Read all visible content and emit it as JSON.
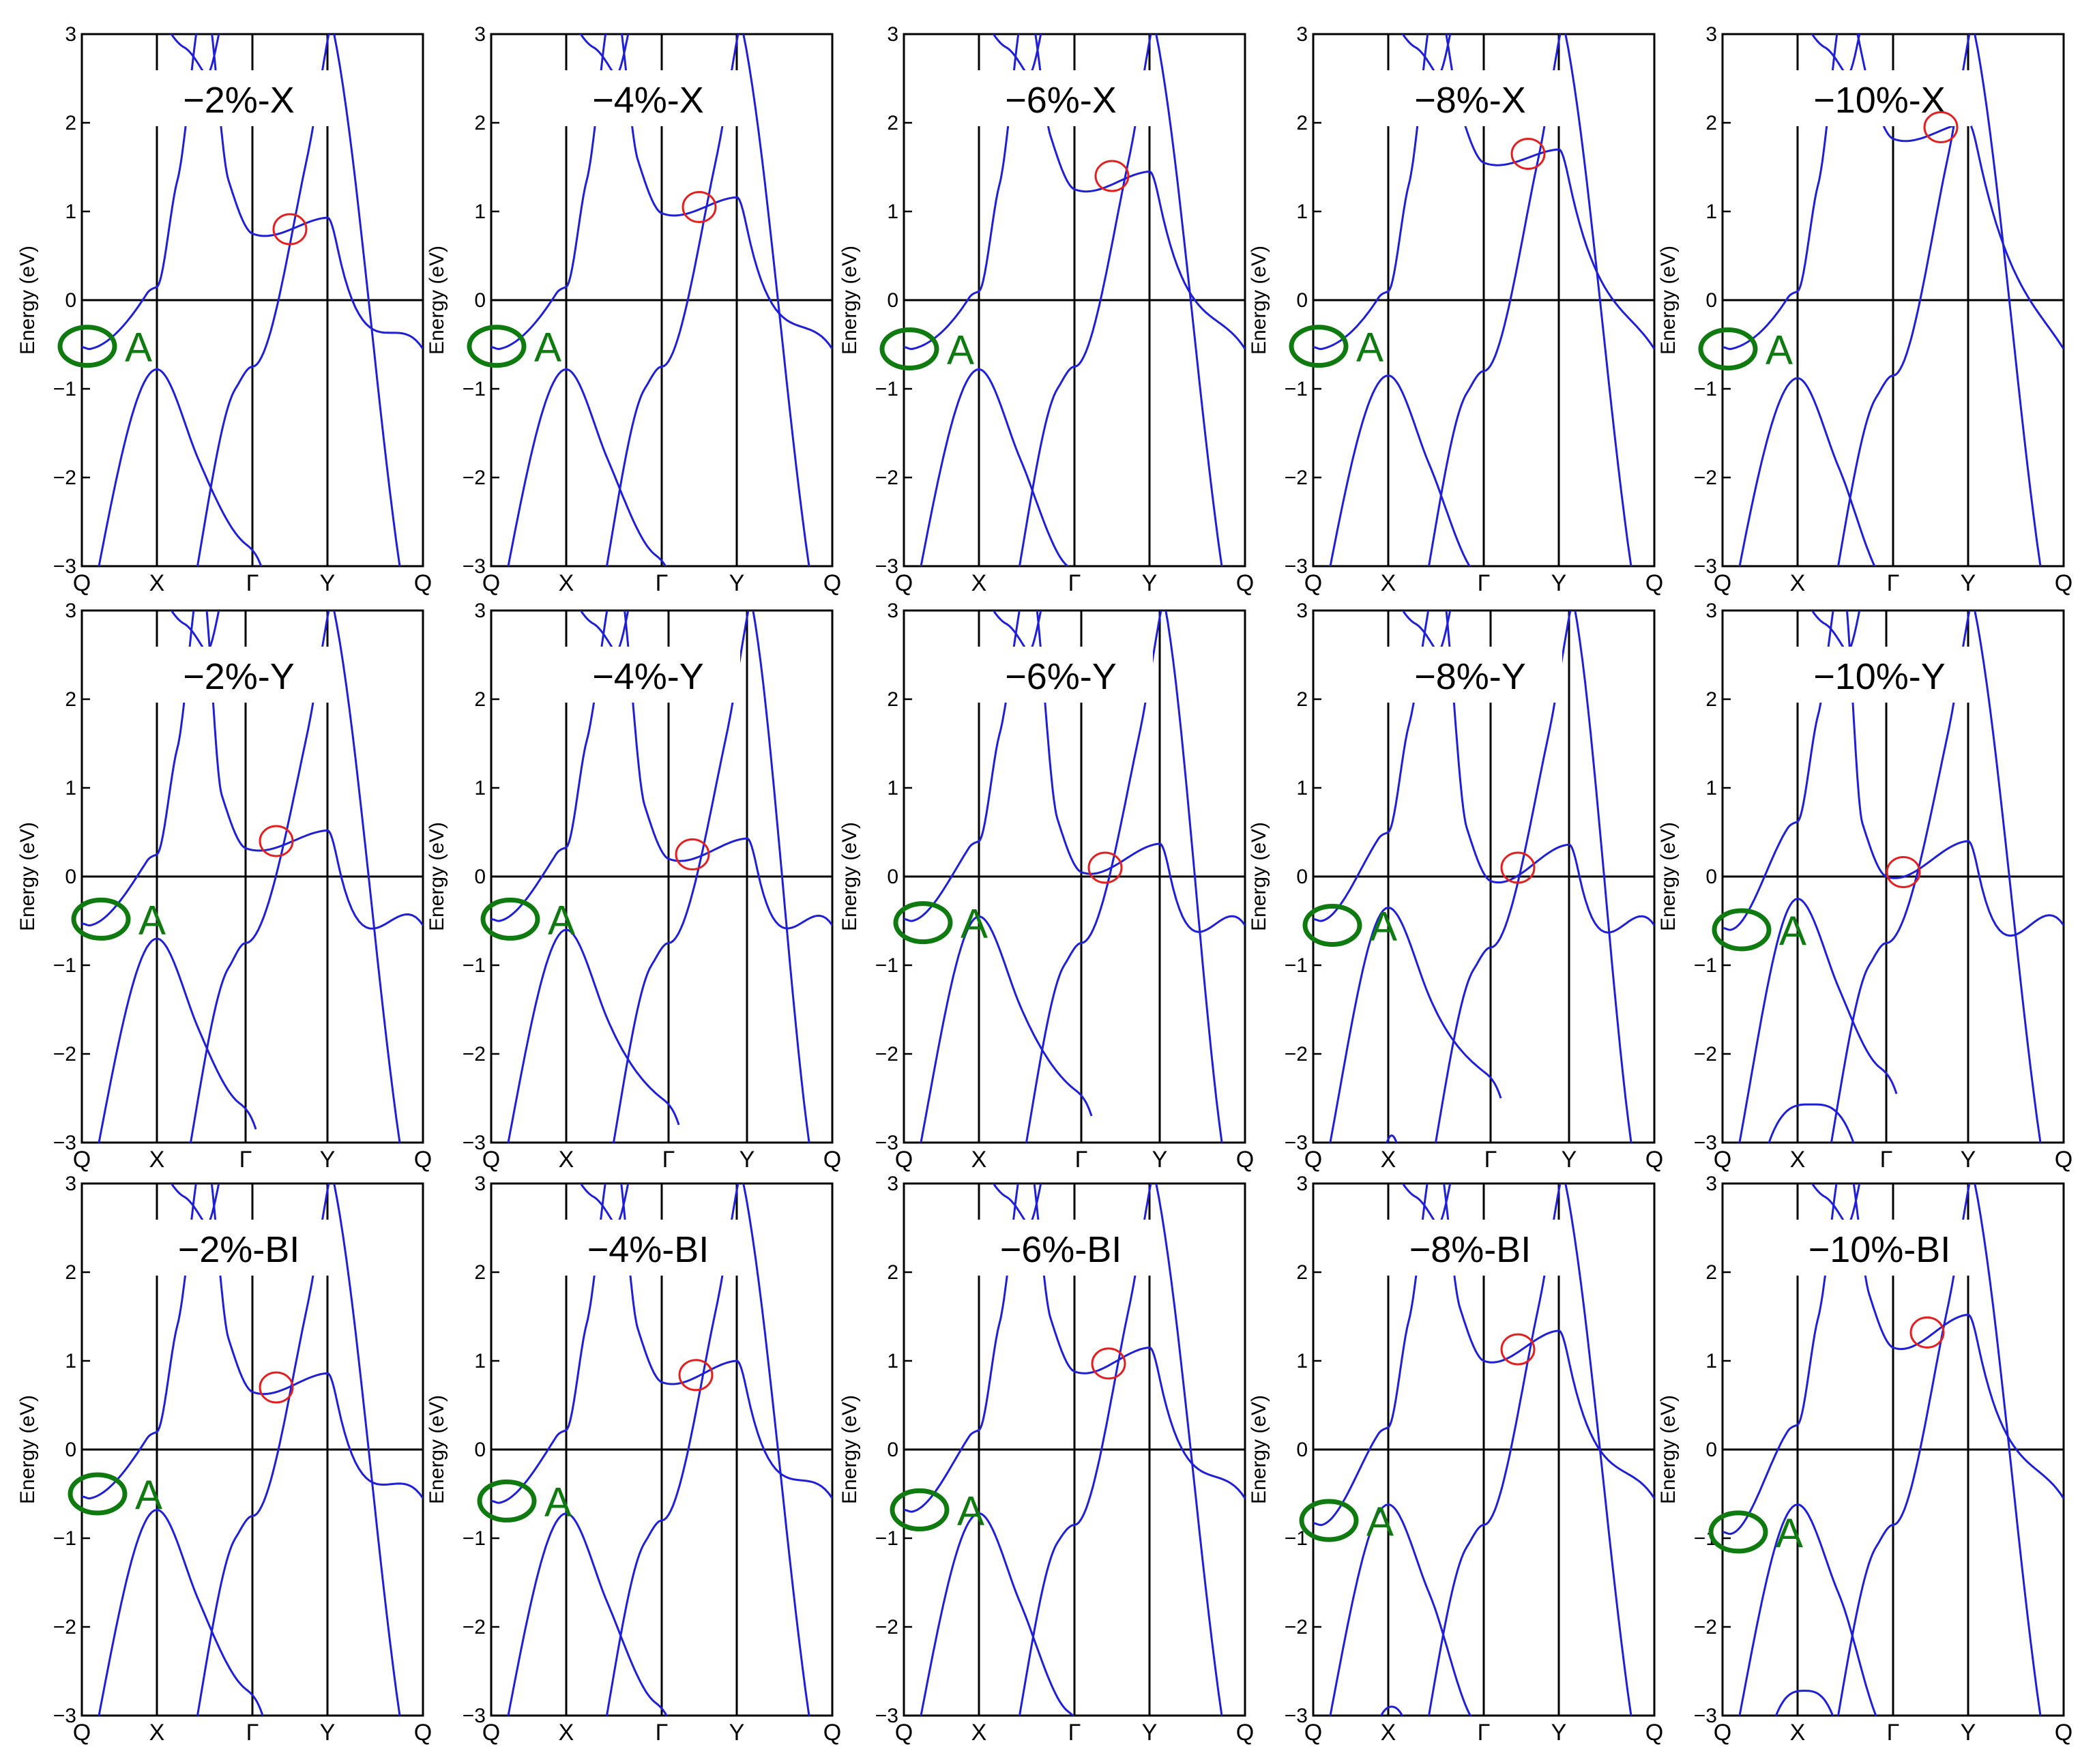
{
  "figure": {
    "rows": 3,
    "cols": 5,
    "colors": {
      "band": "#1f1fd6",
      "axis": "#000000",
      "red_marker": "#e32020",
      "green_marker": "#0f7a10",
      "label_box": "#ffffff"
    }
  },
  "chart_data": [
    {
      "id": "p-2X",
      "type": "line",
      "title": "−2%-X",
      "ylabel": "Energy (eV)",
      "ylim": [
        -3,
        3
      ],
      "yticks": [
        -3,
        -2,
        -1,
        0,
        1,
        2,
        3
      ],
      "kpoints": [
        "Q",
        "X",
        "Γ",
        "Y",
        "Q"
      ],
      "kpos": [
        0,
        0.22,
        0.5,
        0.72,
        1.0
      ],
      "params": {
        "x1": 0.15,
        "d1": 0.75,
        "g1": -0.75,
        "y1": 0.93,
        "vx": -0.78,
        "vg": -0.75,
        "low": -2.75,
        "dip": -0.55
      },
      "red_marker": {
        "x": 0.61,
        "y": 0.8
      },
      "green_marker": {
        "label": "A",
        "x": 0.0,
        "y": -0.52
      }
    },
    {
      "id": "p-4X",
      "type": "line",
      "title": "−4%-X",
      "ylabel": "Energy (eV)",
      "ylim": [
        -3,
        3
      ],
      "yticks": [
        -3,
        -2,
        -1,
        0,
        1,
        2,
        3
      ],
      "kpoints": [
        "Q",
        "X",
        "Γ",
        "Y",
        "Q"
      ],
      "kpos": [
        0,
        0.22,
        0.5,
        0.72,
        1.0
      ],
      "params": {
        "x1": 0.15,
        "d1": 0.98,
        "g1": -0.75,
        "y1": 1.16,
        "vx": -0.78,
        "vg": -0.75,
        "low": -2.87,
        "dip": -0.55
      },
      "red_marker": {
        "x": 0.61,
        "y": 1.05
      },
      "green_marker": {
        "label": "A",
        "x": 0.0,
        "y": -0.52
      }
    },
    {
      "id": "p-6X",
      "type": "line",
      "title": "−6%-X",
      "ylabel": "Energy (eV)",
      "ylim": [
        -3,
        3
      ],
      "yticks": [
        -3,
        -2,
        -1,
        0,
        1,
        2,
        3
      ],
      "kpoints": [
        "Q",
        "X",
        "Γ",
        "Y",
        "Q"
      ],
      "kpos": [
        0,
        0.22,
        0.5,
        0.72,
        1.0
      ],
      "params": {
        "x1": 0.1,
        "d1": 1.25,
        "g1": -0.75,
        "y1": 1.45,
        "vx": -0.78,
        "vg": -0.75,
        "low": -3.0,
        "dip": -0.55
      },
      "red_marker": {
        "x": 0.61,
        "y": 1.4
      },
      "green_marker": {
        "label": "A",
        "x": 0.0,
        "y": -0.55
      }
    },
    {
      "id": "p-8X",
      "type": "line",
      "title": "−8%-X",
      "ylabel": "Energy (eV)",
      "ylim": [
        -3,
        3
      ],
      "yticks": [
        -3,
        -2,
        -1,
        0,
        1,
        2,
        3
      ],
      "kpoints": [
        "Q",
        "X",
        "Γ",
        "Y",
        "Q"
      ],
      "kpos": [
        0,
        0.22,
        0.5,
        0.72,
        1.0
      ],
      "params": {
        "x1": 0.1,
        "d1": 1.55,
        "g1": -0.8,
        "y1": 1.7,
        "vx": -0.85,
        "vg": -0.8,
        "low": -3.1,
        "dip": -0.55
      },
      "red_marker": {
        "x": 0.63,
        "y": 1.65
      },
      "green_marker": {
        "label": "A",
        "x": 0.0,
        "y": -0.52
      }
    },
    {
      "id": "p-10X",
      "type": "line",
      "title": "−10%-X",
      "ylabel": "Energy (eV)",
      "ylim": [
        -3,
        3
      ],
      "yticks": [
        -3,
        -2,
        -1,
        0,
        1,
        2,
        3
      ],
      "kpoints": [
        "Q",
        "X",
        "Γ",
        "Y",
        "Q"
      ],
      "kpos": [
        0,
        0.22,
        0.5,
        0.72,
        1.0
      ],
      "params": {
        "x1": 0.1,
        "d1": 1.82,
        "g1": -0.85,
        "y1": 2.0,
        "vx": -0.88,
        "vg": -0.85,
        "low": -3.2,
        "dip": -0.55
      },
      "red_marker": {
        "x": 0.64,
        "y": 1.95
      },
      "green_marker": {
        "label": "A",
        "x": 0.0,
        "y": -0.55
      }
    },
    {
      "id": "p-2Y",
      "type": "line",
      "title": "−2%-Y",
      "ylabel": "Energy (eV)",
      "ylim": [
        -3,
        3
      ],
      "yticks": [
        -3,
        -2,
        -1,
        0,
        1,
        2,
        3
      ],
      "kpoints": [
        "Q",
        "X",
        "Γ",
        "Y",
        "Q"
      ],
      "kpos": [
        0,
        0.22,
        0.48,
        0.72,
        1.0
      ],
      "params": {
        "x1": 0.25,
        "d1": 0.32,
        "g1": -0.75,
        "y1": 0.52,
        "vx": -0.7,
        "vg": -0.78,
        "low": -2.55,
        "dip": -0.55
      },
      "red_marker": {
        "x": 0.57,
        "y": 0.4
      },
      "green_marker": {
        "label": "A",
        "x": 0.04,
        "y": -0.48
      }
    },
    {
      "id": "p-4Y",
      "type": "line",
      "title": "−4%-Y",
      "ylabel": "Energy (eV)",
      "ylim": [
        -3,
        3
      ],
      "yticks": [
        -3,
        -2,
        -1,
        0,
        1,
        2,
        3
      ],
      "kpoints": [
        "Q",
        "X",
        "Γ",
        "Y",
        "Q"
      ],
      "kpos": [
        0,
        0.22,
        0.52,
        0.75,
        1.0
      ],
      "params": {
        "x1": 0.33,
        "d1": 0.2,
        "g1": -0.75,
        "y1": 0.43,
        "vx": -0.6,
        "vg": -0.75,
        "low": -2.5,
        "dip": -0.5
      },
      "red_marker": {
        "x": 0.59,
        "y": 0.25
      },
      "green_marker": {
        "label": "A",
        "x": 0.04,
        "y": -0.48
      }
    },
    {
      "id": "p-6Y",
      "type": "line",
      "title": "−6%-Y",
      "ylabel": "Energy (eV)",
      "ylim": [
        -3,
        3
      ],
      "yticks": [
        -3,
        -2,
        -1,
        0,
        1,
        2,
        3
      ],
      "kpoints": [
        "Q",
        "X",
        "Γ",
        "Y",
        "Q"
      ],
      "kpos": [
        0,
        0.22,
        0.52,
        0.75,
        1.0
      ],
      "params": {
        "x1": 0.4,
        "d1": 0.05,
        "g1": -0.75,
        "y1": 0.37,
        "vx": -0.45,
        "vg": -0.75,
        "low": -2.4,
        "dip": -0.5
      },
      "red_marker": {
        "x": 0.59,
        "y": 0.1
      },
      "green_marker": {
        "label": "A",
        "x": 0.04,
        "y": -0.52
      }
    },
    {
      "id": "p-8Y",
      "type": "line",
      "title": "−8%-Y",
      "ylabel": "Energy (eV)",
      "ylim": [
        -3,
        3
      ],
      "yticks": [
        -3,
        -2,
        -1,
        0,
        1,
        2,
        3
      ],
      "kpoints": [
        "Q",
        "X",
        "Γ",
        "Y",
        "Q"
      ],
      "kpos": [
        0,
        0.22,
        0.52,
        0.75,
        1.0
      ],
      "params": {
        "x1": 0.5,
        "d1": -0.05,
        "g1": -0.8,
        "y1": 0.36,
        "vx": -0.35,
        "vg": -0.8,
        "low": -2.2,
        "dip": -0.5
      },
      "red_marker": {
        "x": 0.6,
        "y": 0.1
      },
      "green_marker": {
        "label": "A",
        "x": 0.04,
        "y": -0.55
      },
      "extra_bump": {
        "peak": -2.92,
        "from": 0.2,
        "to": 0.26
      }
    },
    {
      "id": "p-10Y",
      "type": "line",
      "title": "−10%-Y",
      "ylabel": "Energy (eV)",
      "ylim": [
        -3,
        3
      ],
      "yticks": [
        -3,
        -2,
        -1,
        0,
        1,
        2,
        3
      ],
      "kpoints": [
        "Q",
        "X",
        "Γ",
        "Y",
        "Q"
      ],
      "kpos": [
        0,
        0.22,
        0.48,
        0.72,
        1.0
      ],
      "params": {
        "x1": 0.62,
        "d1": 0.0,
        "g1": -0.75,
        "y1": 0.4,
        "vx": -0.25,
        "vg": -0.75,
        "low": -2.15,
        "dip": -0.6
      },
      "red_marker": {
        "x": 0.53,
        "y": 0.05
      },
      "green_marker": {
        "label": "A",
        "x": 0.04,
        "y": -0.6
      },
      "extra_bump": {
        "peak": -2.57,
        "from": 0.12,
        "to": 0.4
      }
    },
    {
      "id": "p-2BI",
      "type": "line",
      "title": "−2%-BI",
      "ylabel": "Energy (eV)",
      "ylim": [
        -3,
        3
      ],
      "yticks": [
        -3,
        -2,
        -1,
        0,
        1,
        2,
        3
      ],
      "kpoints": [
        "Q",
        "X",
        "Γ",
        "Y",
        "Q"
      ],
      "kpos": [
        0,
        0.22,
        0.5,
        0.72,
        1.0
      ],
      "params": {
        "x1": 0.2,
        "d1": 0.65,
        "g1": -0.75,
        "y1": 0.86,
        "vx": -0.68,
        "vg": -0.75,
        "low": -2.7,
        "dip": -0.55
      },
      "red_marker": {
        "x": 0.57,
        "y": 0.7
      },
      "green_marker": {
        "label": "A",
        "x": 0.03,
        "y": -0.5
      }
    },
    {
      "id": "p-4BI",
      "type": "line",
      "title": "−4%-BI",
      "ylabel": "Energy (eV)",
      "ylim": [
        -3,
        3
      ],
      "yticks": [
        -3,
        -2,
        -1,
        0,
        1,
        2,
        3
      ],
      "kpoints": [
        "Q",
        "X",
        "Γ",
        "Y",
        "Q"
      ],
      "kpos": [
        0,
        0.22,
        0.5,
        0.72,
        1.0
      ],
      "params": {
        "x1": 0.22,
        "d1": 0.76,
        "g1": -0.8,
        "y1": 1.0,
        "vx": -0.72,
        "vg": -0.8,
        "low": -2.85,
        "dip": -0.6
      },
      "red_marker": {
        "x": 0.6,
        "y": 0.84
      },
      "green_marker": {
        "label": "A",
        "x": 0.03,
        "y": -0.58
      }
    },
    {
      "id": "p-6BI",
      "type": "line",
      "title": "−6%-BI",
      "ylabel": "Energy (eV)",
      "ylim": [
        -3,
        3
      ],
      "yticks": [
        -3,
        -2,
        -1,
        0,
        1,
        2,
        3
      ],
      "kpoints": [
        "Q",
        "X",
        "Γ",
        "Y",
        "Q"
      ],
      "kpos": [
        0,
        0.22,
        0.5,
        0.72,
        1.0
      ],
      "params": {
        "x1": 0.22,
        "d1": 0.88,
        "g1": -0.85,
        "y1": 1.15,
        "vx": -0.72,
        "vg": -0.8,
        "low": -2.95,
        "dip": -0.7
      },
      "red_marker": {
        "x": 0.6,
        "y": 0.97
      },
      "green_marker": {
        "label": "A",
        "x": 0.03,
        "y": -0.68
      }
    },
    {
      "id": "p-8BI",
      "type": "line",
      "title": "−8%-BI",
      "ylabel": "Energy (eV)",
      "ylim": [
        -3,
        3
      ],
      "yticks": [
        -3,
        -2,
        -1,
        0,
        1,
        2,
        3
      ],
      "kpoints": [
        "Q",
        "X",
        "Γ",
        "Y",
        "Q"
      ],
      "kpos": [
        0,
        0.22,
        0.5,
        0.72,
        1.0
      ],
      "params": {
        "x1": 0.25,
        "d1": 1.0,
        "g1": -0.85,
        "y1": 1.34,
        "vx": -0.62,
        "vg": -0.85,
        "low": -3.1,
        "dip": -0.85
      },
      "red_marker": {
        "x": 0.6,
        "y": 1.13
      },
      "green_marker": {
        "label": "A",
        "x": 0.03,
        "y": -0.8
      },
      "extra_bump": {
        "peak": -2.9,
        "from": 0.18,
        "to": 0.28
      }
    },
    {
      "id": "p-10BI",
      "type": "line",
      "title": "−10%-BI",
      "ylabel": "Energy (eV)",
      "ylim": [
        -3,
        3
      ],
      "yticks": [
        -3,
        -2,
        -1,
        0,
        1,
        2,
        3
      ],
      "kpoints": [
        "Q",
        "X",
        "Γ",
        "Y",
        "Q"
      ],
      "kpos": [
        0,
        0.22,
        0.5,
        0.72,
        1.0
      ],
      "params": {
        "x1": 0.28,
        "d1": 1.15,
        "g1": -0.85,
        "y1": 1.52,
        "vx": -0.62,
        "vg": -0.85,
        "low": -3.2,
        "dip": -0.95
      },
      "red_marker": {
        "x": 0.6,
        "y": 1.32
      },
      "green_marker": {
        "label": "A",
        "x": 0.03,
        "y": -0.93
      },
      "extra_bump": {
        "peak": -2.72,
        "from": 0.14,
        "to": 0.34
      }
    }
  ]
}
